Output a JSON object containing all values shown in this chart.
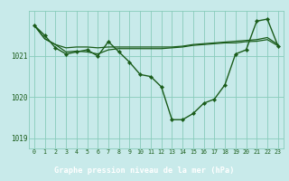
{
  "title": "Graphe pression niveau de la mer (hPa)",
  "bg_color": "#c8eaea",
  "plot_bg": "#c8eaea",
  "line_color": "#1a5c1a",
  "grid_color": "#88ccbb",
  "footer_bg": "#2d6e2d",
  "footer_text": "#ffffff",
  "hours": [
    0,
    1,
    2,
    3,
    4,
    5,
    6,
    7,
    8,
    9,
    10,
    11,
    12,
    13,
    14,
    15,
    16,
    17,
    18,
    19,
    20,
    21,
    22,
    23
  ],
  "pressure_main": [
    1021.75,
    1021.5,
    1021.2,
    1021.05,
    1021.1,
    1021.15,
    1021.0,
    1021.35,
    1021.1,
    1020.85,
    1020.55,
    1020.5,
    1020.25,
    1019.45,
    1019.45,
    1019.6,
    1019.85,
    1019.95,
    1020.3,
    1021.05,
    1021.15,
    1021.85,
    1021.9,
    1021.25
  ],
  "pressure_upper": [
    1021.75,
    1021.42,
    1021.28,
    1021.2,
    1021.22,
    1021.22,
    1021.2,
    1021.22,
    1021.22,
    1021.22,
    1021.22,
    1021.22,
    1021.22,
    1021.22,
    1021.24,
    1021.28,
    1021.3,
    1021.32,
    1021.34,
    1021.36,
    1021.38,
    1021.4,
    1021.45,
    1021.28
  ],
  "pressure_lower": [
    1021.75,
    1021.42,
    1021.28,
    1021.1,
    1021.12,
    1021.1,
    1021.05,
    1021.15,
    1021.18,
    1021.18,
    1021.18,
    1021.18,
    1021.18,
    1021.2,
    1021.22,
    1021.26,
    1021.28,
    1021.3,
    1021.32,
    1021.32,
    1021.35,
    1021.36,
    1021.4,
    1021.25
  ],
  "ylim": [
    1018.75,
    1022.1
  ],
  "yticks": [
    1019,
    1020,
    1021
  ],
  "xlim": [
    -0.5,
    23.5
  ]
}
